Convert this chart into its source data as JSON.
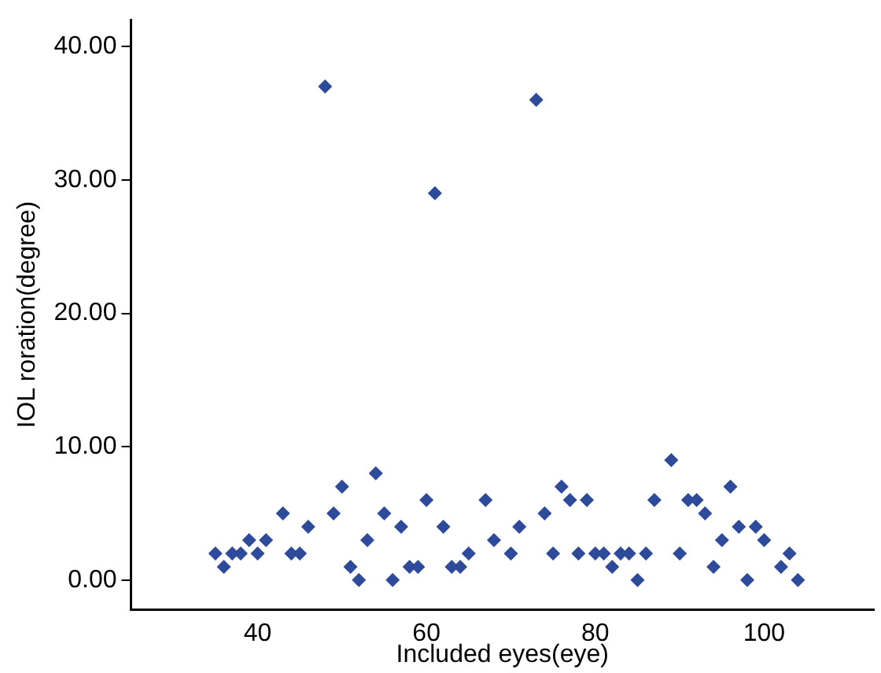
{
  "chart_data": {
    "type": "scatter",
    "xlabel": "Included eyes(eye)",
    "ylabel": "IOL roration(degree)",
    "x": [
      35,
      36,
      37,
      38,
      39,
      40,
      41,
      43,
      44,
      45,
      46,
      48,
      49,
      50,
      51,
      52,
      53,
      54,
      55,
      56,
      57,
      58,
      59,
      60,
      61,
      62,
      63,
      64,
      65,
      67,
      68,
      70,
      71,
      73,
      74,
      75,
      76,
      77,
      78,
      79,
      80,
      81,
      82,
      83,
      84,
      85,
      86,
      87,
      89,
      90,
      91,
      92,
      93,
      94,
      95,
      96,
      97,
      98,
      99,
      100,
      102,
      103,
      104
    ],
    "values": [
      2,
      1,
      2,
      2,
      3,
      2,
      3,
      5,
      2,
      2,
      4,
      37,
      5,
      7,
      1,
      0,
      3,
      8,
      5,
      0,
      4,
      1,
      1,
      6,
      29,
      4,
      1,
      1,
      2,
      6,
      3,
      2,
      4,
      36,
      5,
      2,
      7,
      6,
      2,
      6,
      2,
      2,
      1,
      2,
      2,
      0,
      2,
      6,
      9,
      2,
      6,
      6,
      5,
      1,
      3,
      7,
      4,
      0,
      4,
      3,
      1,
      2,
      0
    ],
    "color": "#2e4a9a",
    "marker": "diamond",
    "xlim": [
      25,
      113
    ],
    "xticks": [
      40,
      60,
      80,
      100
    ],
    "ylim": [
      -2.2,
      42
    ],
    "yticks": [
      {
        "value": 0,
        "label": "0.00"
      },
      {
        "value": 10,
        "label": "10.00"
      },
      {
        "value": 20,
        "label": "20.00"
      },
      {
        "value": 30,
        "label": "30.00"
      },
      {
        "value": 40,
        "label": "40.00"
      }
    ],
    "grid": false,
    "legend": false
  }
}
